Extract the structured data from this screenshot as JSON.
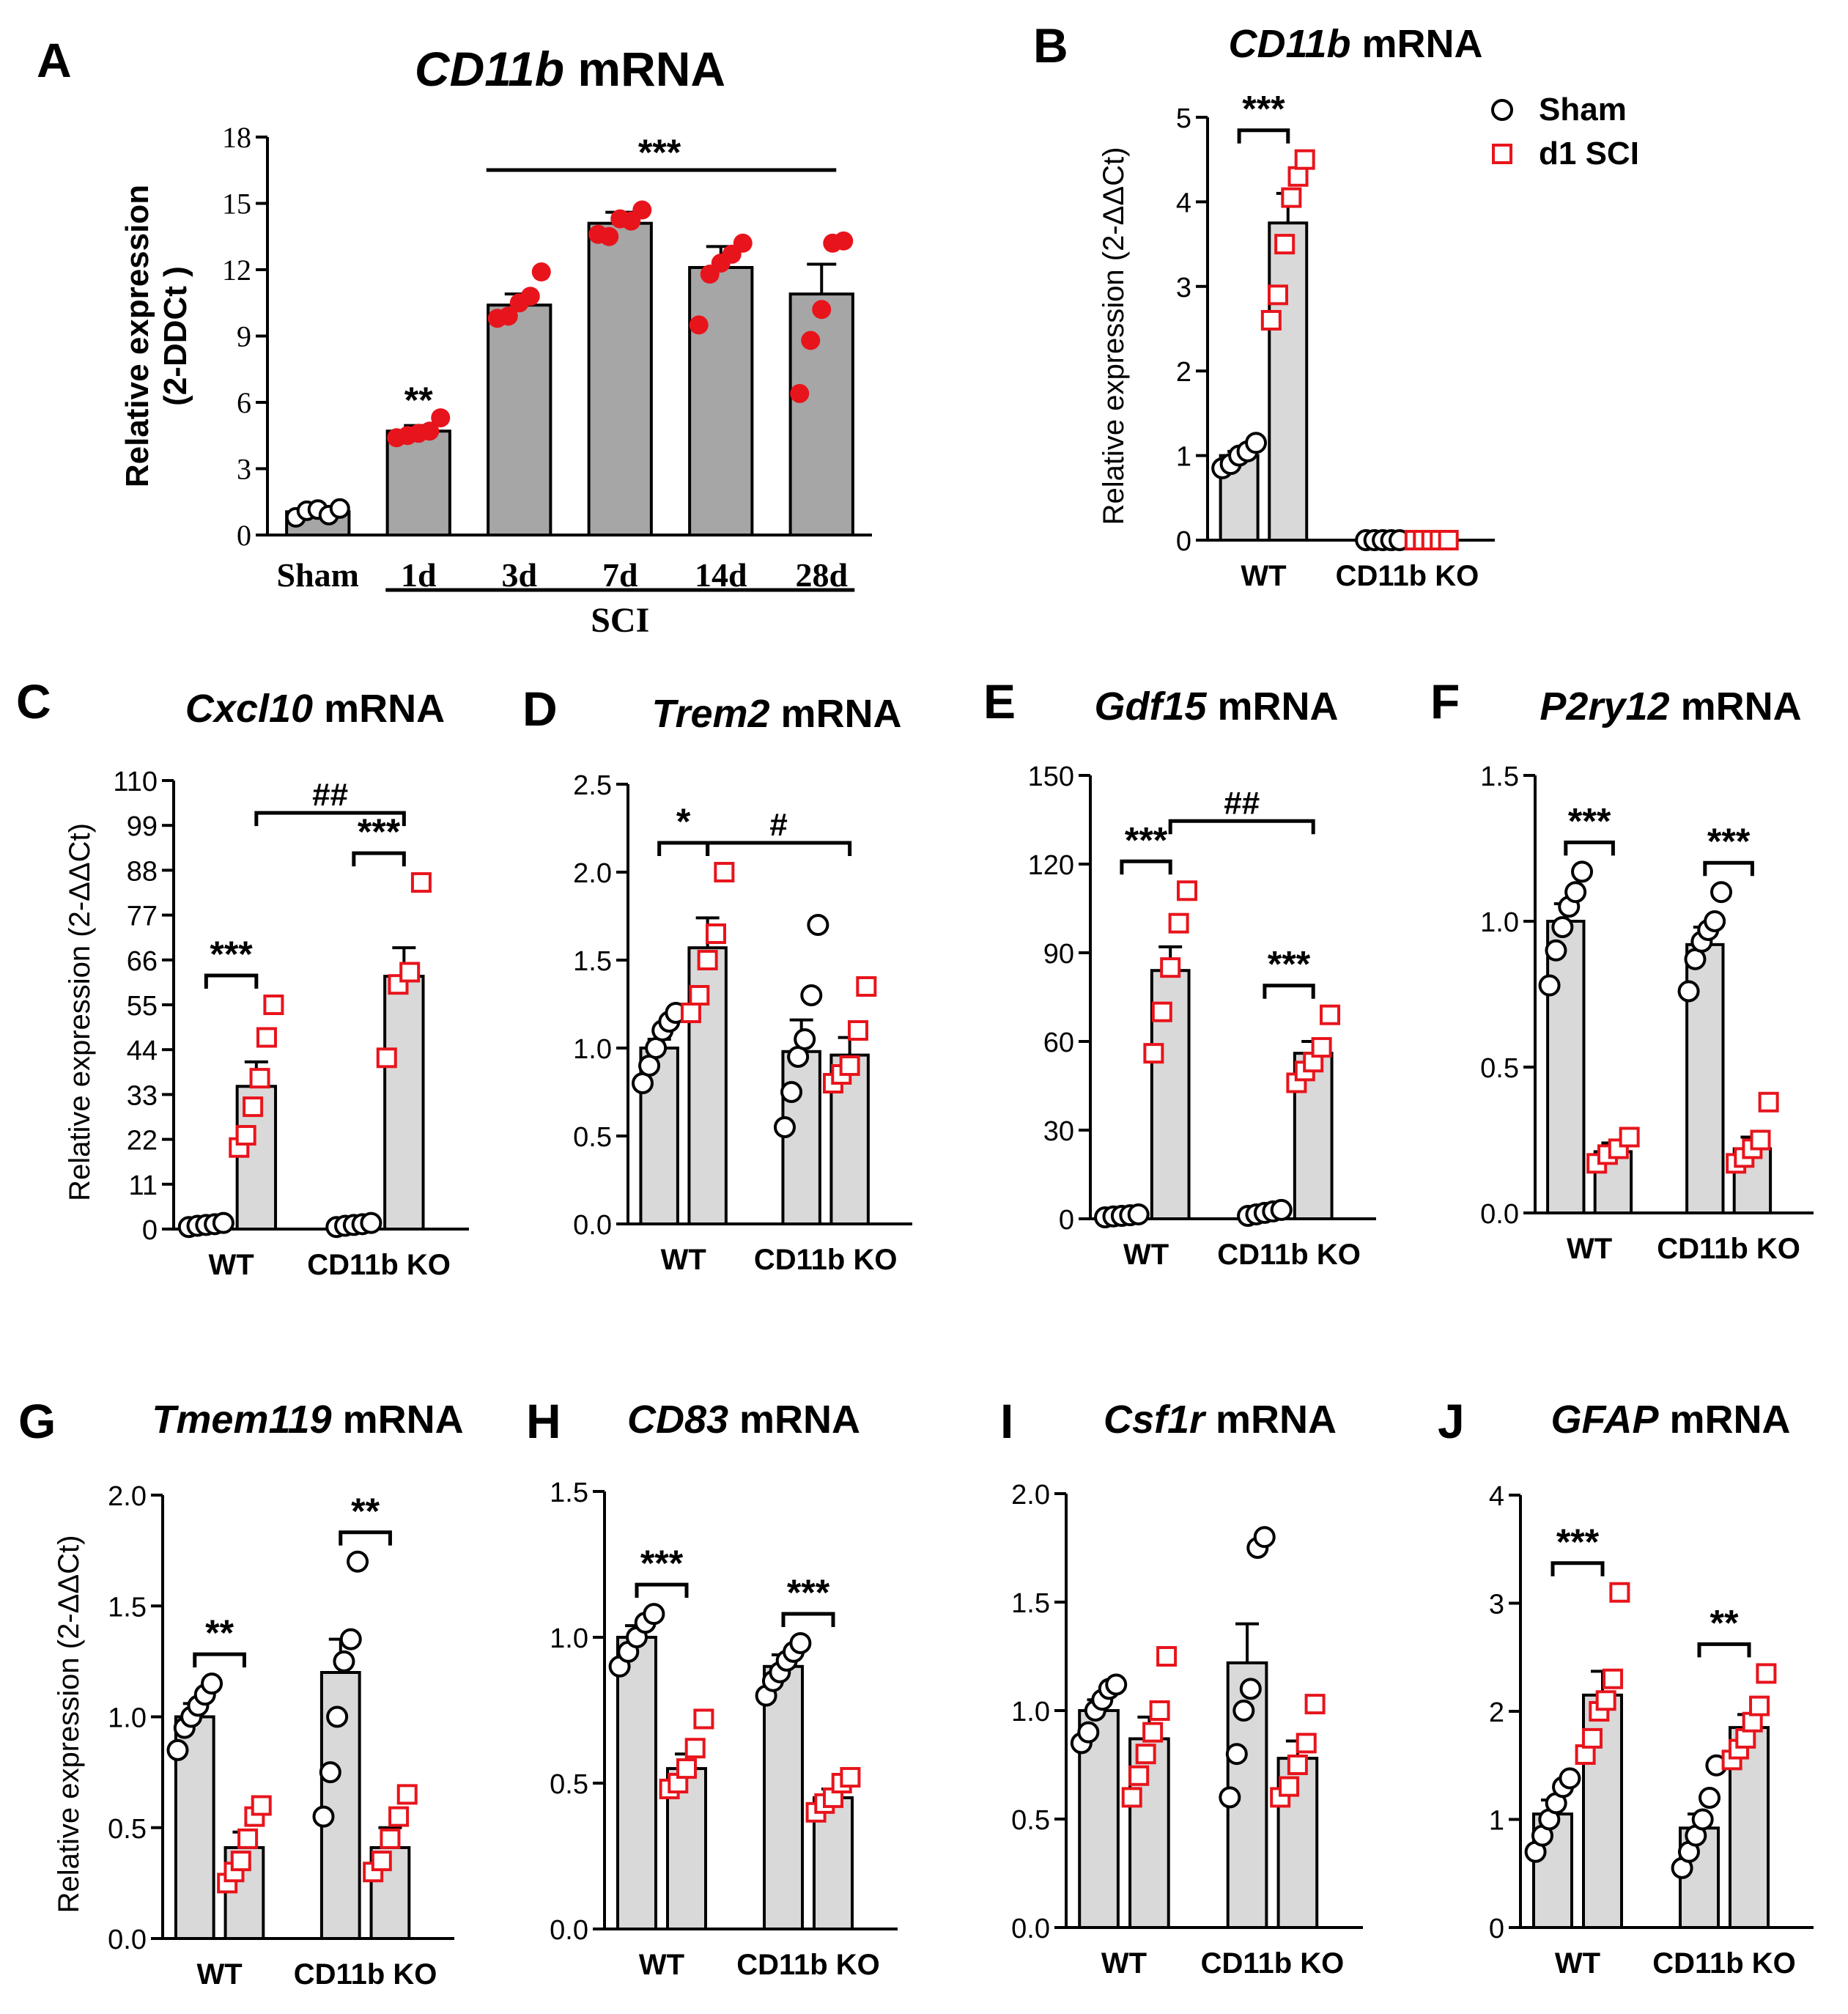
{
  "figure": {
    "sig_color": "#000000",
    "bar_fill_A": "#a6a6a6",
    "bar_fill": "#d9d9d9",
    "sham_color": "#000000",
    "sci_color": "#e8141c"
  },
  "legend": {
    "sham": "Sham",
    "sci": "d1 SCI"
  },
  "chart_data": [
    {
      "panel": "A",
      "type": "bar",
      "title_gene": "CD11b",
      "title_suffix": " mRNA",
      "ylabel": [
        "Relative expression",
        "(2-DDCt )"
      ],
      "yticks": [
        0,
        3,
        6,
        9,
        12,
        15,
        18
      ],
      "ylim": [
        0,
        18
      ],
      "categories": [
        "Sham",
        "1d",
        "3d",
        "7d",
        "14d",
        "28d"
      ],
      "group_label": "SCI",
      "means": [
        1.05,
        4.7,
        10.4,
        14.1,
        12.1,
        10.9
      ],
      "sems": [
        0.1,
        0.25,
        0.5,
        0.5,
        0.95,
        1.35
      ],
      "points": [
        [
          0.8,
          1.1,
          1.15,
          0.9,
          1.2
        ],
        [
          4.4,
          4.5,
          4.6,
          4.7,
          5.3
        ],
        [
          9.8,
          9.9,
          10.5,
          10.8,
          11.9
        ],
        [
          13.6,
          13.5,
          14.3,
          14.2,
          14.7
        ],
        [
          9.5,
          11.8,
          12.3,
          12.7,
          13.2
        ],
        [
          6.4,
          8.8,
          10.2,
          13.2,
          13.3
        ]
      ],
      "sig": [
        {
          "label": "**",
          "type": "star"
        },
        {
          "label": "***",
          "type": "line"
        }
      ]
    },
    {
      "panel": "B",
      "type": "bar",
      "title_gene": "CD11b",
      "title_suffix": " mRNA",
      "ylabel": "Relative expression (2-ΔΔCt)",
      "yticks": [
        0,
        1,
        2,
        3,
        4,
        5
      ],
      "ylim": [
        0,
        5
      ],
      "groups": [
        "WT",
        "CD11b KO"
      ],
      "means": [
        [
          1.0,
          3.75
        ],
        [
          0.0,
          0.0
        ]
      ],
      "sems": [
        [
          0.05,
          0.35
        ],
        [
          0,
          0
        ]
      ],
      "points": [
        [
          [
            0.85,
            0.9,
            1.0,
            1.05,
            1.15
          ],
          [
            2.6,
            2.9,
            3.5,
            4.05,
            4.3,
            4.5
          ]
        ],
        [
          [
            0,
            0,
            0,
            0,
            0
          ],
          [
            0,
            0,
            0,
            0,
            0
          ]
        ]
      ],
      "sig": [
        {
          "label": "***",
          "type": "within",
          "group": 0
        }
      ]
    },
    {
      "panel": "C",
      "type": "bar",
      "title_gene": "Cxcl10",
      "title_suffix": " mRNA",
      "ylabel": "Relative expression (2-ΔΔCt)",
      "yticks": [
        0,
        11,
        22,
        33,
        44,
        55,
        66,
        77,
        88,
        99,
        110
      ],
      "ylim": [
        0,
        110
      ],
      "groups": [
        "WT",
        "CD11b KO"
      ],
      "means": [
        [
          1.0,
          35.0
        ],
        [
          1.0,
          62.0
        ]
      ],
      "sems": [
        [
          0.2,
          6.0
        ],
        [
          0.2,
          7.0
        ]
      ],
      "points": [
        [
          [
            0.5,
            0.8,
            1.0,
            1.2,
            1.5
          ],
          [
            20,
            23,
            30,
            37,
            47,
            55
          ]
        ],
        [
          [
            0.5,
            0.8,
            1.0,
            1.2,
            1.5
          ],
          [
            42,
            60,
            63,
            85
          ]
        ]
      ],
      "sig": [
        {
          "label": "***",
          "type": "within",
          "group": 0
        },
        {
          "label": "***",
          "type": "within",
          "group": 1
        },
        {
          "label": "##",
          "type": "across"
        }
      ]
    },
    {
      "panel": "D",
      "type": "bar",
      "title_gene": "Trem2",
      "title_suffix": " mRNA",
      "ylabel": "",
      "yticks": [
        0.0,
        0.5,
        1.0,
        1.5,
        2.0,
        2.5
      ],
      "ylim": [
        0,
        2.5
      ],
      "groups": [
        "WT",
        "CD11b KO"
      ],
      "means": [
        [
          1.0,
          1.57
        ],
        [
          0.98,
          0.96
        ]
      ],
      "sems": [
        [
          0.05,
          0.17
        ],
        [
          0.18,
          0.1
        ]
      ],
      "points": [
        [
          [
            0.8,
            0.9,
            1.0,
            1.1,
            1.15,
            1.2
          ],
          [
            1.2,
            1.3,
            1.5,
            1.65,
            2.0
          ]
        ],
        [
          [
            0.55,
            0.75,
            0.95,
            1.05,
            1.3,
            1.7
          ],
          [
            0.8,
            0.85,
            0.9,
            1.1,
            1.35
          ]
        ]
      ],
      "sig": [
        {
          "label": "*",
          "type": "within",
          "group": 0
        },
        {
          "label": "#",
          "type": "across"
        }
      ]
    },
    {
      "panel": "E",
      "type": "bar",
      "title_gene": "Gdf15",
      "title_suffix": " mRNA",
      "ylabel": "",
      "yticks": [
        0,
        30,
        60,
        90,
        120,
        150
      ],
      "ylim": [
        0,
        150
      ],
      "groups": [
        "WT",
        "CD11b KO"
      ],
      "means": [
        [
          1.0,
          84.0
        ],
        [
          2.0,
          56.0
        ]
      ],
      "sems": [
        [
          0.3,
          8.0
        ],
        [
          0.5,
          4.0
        ]
      ],
      "points": [
        [
          [
            0.5,
            0.8,
            1.0,
            1.2,
            1.5
          ],
          [
            56,
            70,
            85,
            100,
            111
          ]
        ],
        [
          [
            1.0,
            1.5,
            2.0,
            2.5,
            3.0
          ],
          [
            46,
            50,
            53,
            58,
            69
          ]
        ]
      ],
      "sig": [
        {
          "label": "***",
          "type": "within",
          "group": 0
        },
        {
          "label": "***",
          "type": "within",
          "group": 1
        },
        {
          "label": "##",
          "type": "across"
        }
      ]
    },
    {
      "panel": "F",
      "type": "bar",
      "title_gene": "P2ry12",
      "title_suffix": " mRNA",
      "ylabel": "",
      "yticks": [
        0.0,
        0.5,
        1.0,
        1.5
      ],
      "ylim": [
        0,
        1.5
      ],
      "groups": [
        "WT",
        "CD11b KO"
      ],
      "means": [
        [
          1.0,
          0.21
        ],
        [
          0.92,
          0.22
        ]
      ],
      "sems": [
        [
          0.06,
          0.03
        ],
        [
          0.06,
          0.04
        ]
      ],
      "points": [
        [
          [
            0.78,
            0.9,
            0.98,
            1.05,
            1.1,
            1.17
          ],
          [
            0.17,
            0.2,
            0.22,
            0.26
          ]
        ],
        [
          [
            0.76,
            0.87,
            0.93,
            0.97,
            1.0,
            1.1
          ],
          [
            0.17,
            0.19,
            0.22,
            0.25,
            0.38
          ]
        ]
      ],
      "sig": [
        {
          "label": "***",
          "type": "within",
          "group": 0
        },
        {
          "label": "***",
          "type": "within",
          "group": 1
        }
      ]
    },
    {
      "panel": "G",
      "type": "bar",
      "title_gene": "Tmem119",
      "title_suffix": " mRNA",
      "ylabel": "Relative expression (2-ΔΔCt)",
      "yticks": [
        0.0,
        0.5,
        1.0,
        1.5,
        2.0
      ],
      "ylim": [
        0,
        2.0
      ],
      "groups": [
        "WT",
        "CD11b KO"
      ],
      "means": [
        [
          1.0,
          0.41
        ],
        [
          1.2,
          0.41
        ]
      ],
      "sems": [
        [
          0.06,
          0.07
        ],
        [
          0.15,
          0.09
        ]
      ],
      "points": [
        [
          [
            0.85,
            0.95,
            1.0,
            1.05,
            1.1,
            1.15
          ],
          [
            0.25,
            0.3,
            0.35,
            0.45,
            0.55,
            0.6
          ]
        ],
        [
          [
            0.55,
            0.75,
            1.0,
            1.25,
            1.35,
            1.7
          ],
          [
            0.3,
            0.35,
            0.45,
            0.55,
            0.65
          ]
        ]
      ],
      "sig": [
        {
          "label": "**",
          "type": "within",
          "group": 0
        },
        {
          "label": "**",
          "type": "within",
          "group": 1
        }
      ]
    },
    {
      "panel": "H",
      "type": "bar",
      "title_gene": "CD83",
      "title_suffix": " mRNA",
      "ylabel": "",
      "yticks": [
        0.0,
        0.5,
        1.0,
        1.5
      ],
      "ylim": [
        0,
        1.5
      ],
      "groups": [
        "WT",
        "CD11b KO"
      ],
      "means": [
        [
          1.0,
          0.55
        ],
        [
          0.9,
          0.45
        ]
      ],
      "sems": [
        [
          0.04,
          0.05
        ],
        [
          0.04,
          0.03
        ]
      ],
      "points": [
        [
          [
            0.9,
            0.95,
            1.0,
            1.05,
            1.08
          ],
          [
            0.48,
            0.5,
            0.55,
            0.62,
            0.72
          ]
        ],
        [
          [
            0.8,
            0.85,
            0.88,
            0.92,
            0.95,
            0.98
          ],
          [
            0.4,
            0.43,
            0.45,
            0.5,
            0.52
          ]
        ]
      ],
      "sig": [
        {
          "label": "***",
          "type": "within",
          "group": 0
        },
        {
          "label": "***",
          "type": "within",
          "group": 1
        }
      ]
    },
    {
      "panel": "I",
      "type": "bar",
      "title_gene": "Csf1r",
      "title_suffix": " mRNA",
      "ylabel": "",
      "yticks": [
        0.0,
        0.5,
        1.0,
        1.5,
        2.0
      ],
      "ylim": [
        0,
        2.0
      ],
      "groups": [
        "WT",
        "CD11b KO"
      ],
      "means": [
        [
          1.0,
          0.87
        ],
        [
          1.22,
          0.78
        ]
      ],
      "sems": [
        [
          0.05,
          0.1
        ],
        [
          0.18,
          0.08
        ]
      ],
      "points": [
        [
          [
            0.85,
            0.9,
            1.0,
            1.05,
            1.1,
            1.12
          ],
          [
            0.6,
            0.7,
            0.8,
            0.9,
            1.0,
            1.25
          ]
        ],
        [
          [
            0.6,
            0.8,
            1.0,
            1.1,
            1.75,
            1.8
          ],
          [
            0.6,
            0.65,
            0.75,
            0.85,
            1.03
          ]
        ]
      ],
      "sig": []
    },
    {
      "panel": "J",
      "type": "bar",
      "title_gene": "GFAP",
      "title_suffix": " mRNA",
      "ylabel": "",
      "yticks": [
        0,
        1,
        2,
        3,
        4
      ],
      "ylim": [
        0,
        4
      ],
      "groups": [
        "WT",
        "CD11b KO"
      ],
      "means": [
        [
          1.05,
          2.15
        ],
        [
          0.92,
          1.85
        ]
      ],
      "sems": [
        [
          0.13,
          0.22
        ],
        [
          0.13,
          0.12
        ]
      ],
      "points": [
        [
          [
            0.7,
            0.85,
            1.0,
            1.15,
            1.3,
            1.38
          ],
          [
            1.6,
            1.75,
            2.0,
            2.1,
            2.3,
            3.1
          ]
        ],
        [
          [
            0.55,
            0.7,
            0.85,
            1.0,
            1.2,
            1.5
          ],
          [
            1.55,
            1.65,
            1.75,
            1.9,
            2.05,
            2.35
          ]
        ]
      ],
      "sig": [
        {
          "label": "***",
          "type": "within",
          "group": 0
        },
        {
          "label": "**",
          "type": "within",
          "group": 1
        }
      ]
    }
  ]
}
